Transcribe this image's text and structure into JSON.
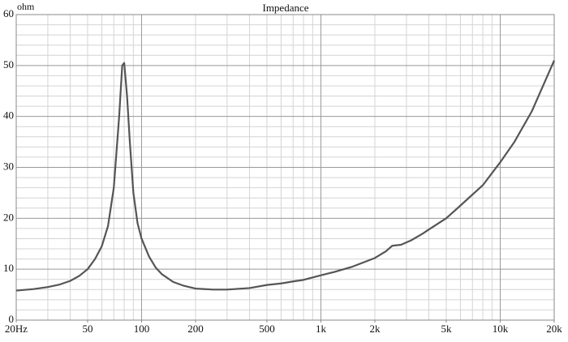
{
  "chart_data": {
    "type": "line",
    "title": "Impedance",
    "y_label": "ohm",
    "color": "#555555",
    "log_x": true,
    "grid": true,
    "x": [
      20,
      25,
      30,
      35,
      40,
      45,
      50,
      55,
      60,
      65,
      70,
      75,
      78,
      80,
      83,
      86,
      90,
      95,
      100,
      110,
      120,
      130,
      150,
      170,
      200,
      250,
      300,
      400,
      500,
      600,
      700,
      800,
      1000,
      1200,
      1500,
      2000,
      2300,
      2500,
      2800,
      3200,
      3700,
      4000,
      5000,
      6000,
      8000,
      10000,
      12000,
      15000,
      20000
    ],
    "values": [
      5.8,
      6.1,
      6.5,
      7.0,
      7.7,
      8.7,
      10,
      12,
      14.5,
      18.5,
      26,
      40,
      50,
      50.5,
      44,
      35,
      25,
      19,
      16,
      12.5,
      10.3,
      9,
      7.5,
      6.8,
      6.2,
      6.0,
      6.0,
      6.3,
      6.9,
      7.2,
      7.6,
      7.9,
      8.8,
      9.5,
      10.5,
      12.2,
      13.5,
      14.6,
      14.8,
      15.7,
      17,
      17.8,
      20,
      22.5,
      26.5,
      31,
      35,
      41,
      51
    ],
    "xlim": [
      20,
      20000
    ],
    "ylim": [
      0,
      60
    ],
    "xticks": [
      {
        "value": 20,
        "label": "20Hz"
      },
      50,
      100,
      200,
      500,
      {
        "value": 1000,
        "label": "1k"
      },
      {
        "value": 2000,
        "label": "2k"
      },
      {
        "value": 5000,
        "label": "5k"
      },
      {
        "value": 10000,
        "label": "10k"
      },
      {
        "value": 20000,
        "label": "20k"
      }
    ],
    "yticks": [
      0,
      10,
      20,
      30,
      40,
      50,
      60
    ],
    "x_major_grid": [
      100,
      1000,
      10000
    ],
    "x_minor_grid": [
      30,
      40,
      50,
      60,
      70,
      80,
      90,
      200,
      300,
      400,
      500,
      600,
      700,
      800,
      900,
      2000,
      3000,
      4000,
      5000,
      6000,
      7000,
      8000,
      9000
    ],
    "y_minor_grid": [
      2,
      4,
      6,
      8,
      12,
      14,
      16,
      18,
      22,
      24,
      26,
      28,
      32,
      34,
      36,
      38,
      42,
      44,
      46,
      48,
      52,
      54,
      56,
      58
    ]
  }
}
